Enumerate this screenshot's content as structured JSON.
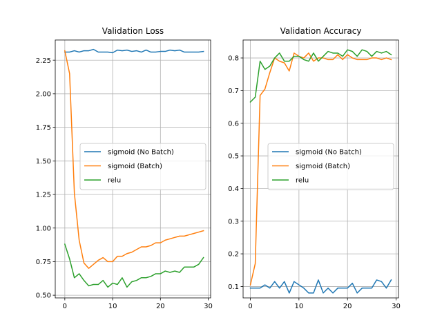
{
  "chart_data": [
    {
      "type": "line",
      "title": "Validation Loss",
      "xlabel": "",
      "ylabel": "",
      "xlim": [
        -2.0,
        30.5
      ],
      "ylim": [
        0.48,
        2.4
      ],
      "xticks": [
        0,
        10,
        20,
        30
      ],
      "xtick_labels": [
        "0",
        "10",
        "20",
        "30"
      ],
      "yticks": [
        0.5,
        0.75,
        1.0,
        1.25,
        1.5,
        1.75,
        2.0,
        2.25
      ],
      "ytick_labels": [
        "0.50",
        "0.75",
        "1.00",
        "1.25",
        "1.50",
        "1.75",
        "2.00",
        "2.25"
      ],
      "grid": true,
      "legend_position": "center-right",
      "x": [
        0,
        1,
        2,
        3,
        4,
        5,
        6,
        7,
        8,
        9,
        10,
        11,
        12,
        13,
        14,
        15,
        16,
        17,
        18,
        19,
        20,
        21,
        22,
        23,
        24,
        25,
        26,
        27,
        28,
        29
      ],
      "series": [
        {
          "name": "sigmoid (No Batch)",
          "color": "#1f77b4",
          "values": [
            2.31,
            2.31,
            2.32,
            2.31,
            2.32,
            2.32,
            2.33,
            2.31,
            2.31,
            2.31,
            2.305,
            2.325,
            2.32,
            2.325,
            2.315,
            2.32,
            2.31,
            2.325,
            2.31,
            2.31,
            2.315,
            2.315,
            2.325,
            2.32,
            2.325,
            2.31,
            2.31,
            2.31,
            2.31,
            2.315
          ]
        },
        {
          "name": "sigmoid (Batch)",
          "color": "#ff7f0e",
          "values": [
            2.32,
            2.15,
            1.26,
            0.91,
            0.74,
            0.7,
            0.73,
            0.76,
            0.78,
            0.75,
            0.75,
            0.79,
            0.79,
            0.81,
            0.82,
            0.84,
            0.86,
            0.86,
            0.87,
            0.89,
            0.89,
            0.91,
            0.92,
            0.93,
            0.94,
            0.94,
            0.95,
            0.96,
            0.97,
            0.98
          ]
        },
        {
          "name": "relu",
          "color": "#2ca02c",
          "values": [
            0.88,
            0.77,
            0.63,
            0.66,
            0.61,
            0.57,
            0.58,
            0.58,
            0.61,
            0.56,
            0.59,
            0.58,
            0.63,
            0.56,
            0.6,
            0.61,
            0.63,
            0.63,
            0.64,
            0.66,
            0.66,
            0.68,
            0.67,
            0.68,
            0.67,
            0.71,
            0.71,
            0.71,
            0.73,
            0.78
          ]
        }
      ]
    },
    {
      "type": "line",
      "title": "Validation Accuracy",
      "xlabel": "",
      "ylabel": "",
      "xlim": [
        -1.5,
        30.5
      ],
      "ylim": [
        0.065,
        0.855
      ],
      "xticks": [
        0,
        10,
        20,
        30
      ],
      "xtick_labels": [
        "0",
        "10",
        "20",
        "30"
      ],
      "yticks": [
        0.1,
        0.2,
        0.3,
        0.4,
        0.5,
        0.6,
        0.7,
        0.8
      ],
      "ytick_labels": [
        "0.1",
        "0.2",
        "0.3",
        "0.4",
        "0.5",
        "0.6",
        "0.7",
        "0.8"
      ],
      "grid": true,
      "legend_position": "center-right",
      "x": [
        0,
        1,
        2,
        3,
        4,
        5,
        6,
        7,
        8,
        9,
        10,
        11,
        12,
        13,
        14,
        15,
        16,
        17,
        18,
        19,
        20,
        21,
        22,
        23,
        24,
        25,
        26,
        27,
        28,
        29
      ],
      "series": [
        {
          "name": "sigmoid (No Batch)",
          "color": "#1f77b4",
          "values": [
            0.095,
            0.095,
            0.095,
            0.105,
            0.095,
            0.115,
            0.095,
            0.115,
            0.08,
            0.115,
            0.105,
            0.095,
            0.08,
            0.08,
            0.12,
            0.08,
            0.095,
            0.08,
            0.095,
            0.095,
            0.095,
            0.11,
            0.08,
            0.095,
            0.095,
            0.095,
            0.12,
            0.115,
            0.095,
            0.12
          ]
        },
        {
          "name": "sigmoid (Batch)",
          "color": "#ff7f0e",
          "values": [
            0.105,
            0.17,
            0.685,
            0.705,
            0.755,
            0.8,
            0.79,
            0.785,
            0.76,
            0.815,
            0.805,
            0.8,
            0.815,
            0.79,
            0.8,
            0.8,
            0.795,
            0.795,
            0.81,
            0.795,
            0.81,
            0.8,
            0.795,
            0.795,
            0.795,
            0.8,
            0.8,
            0.795,
            0.8,
            0.795
          ]
        },
        {
          "name": "relu",
          "color": "#2ca02c",
          "values": [
            0.665,
            0.68,
            0.79,
            0.765,
            0.775,
            0.8,
            0.815,
            0.79,
            0.79,
            0.805,
            0.805,
            0.795,
            0.79,
            0.815,
            0.79,
            0.805,
            0.82,
            0.815,
            0.815,
            0.805,
            0.825,
            0.82,
            0.805,
            0.825,
            0.82,
            0.805,
            0.82,
            0.815,
            0.82,
            0.81
          ]
        }
      ]
    }
  ]
}
